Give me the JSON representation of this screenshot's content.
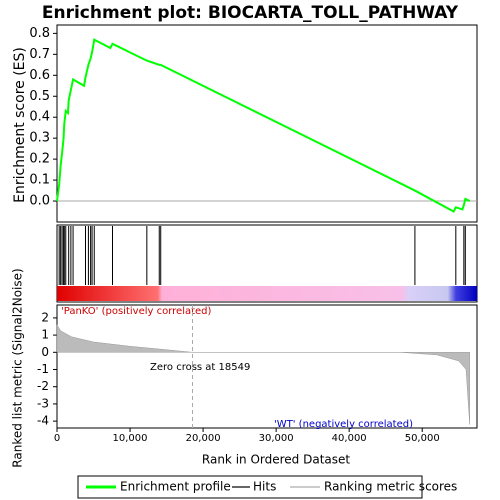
{
  "chart_data": {
    "type": "line",
    "title": "Enrichment plot: BIOCARTA_TOLL_PATHWAY",
    "ylabel": "Enrichment score (ES)",
    "xlabel": "Rank in Ordered Dataset",
    "xlim": [
      0,
      57500
    ],
    "xticks": [
      0,
      {
        "value": 10000,
        "label": "10,000"
      },
      {
        "value": 20000,
        "label": "20,000"
      },
      {
        "value": 30000,
        "label": "30,000"
      },
      {
        "value": 40000,
        "label": "40,000"
      },
      {
        "value": 50000,
        "label": "50,000"
      }
    ],
    "ylim": [
      -0.1,
      0.84
    ],
    "yticks": [
      {
        "value": 0,
        "label": "0.0"
      },
      0.1,
      0.2,
      0.3,
      0.4,
      0.5,
      0.6,
      0.7,
      0.8
    ],
    "series": [
      {
        "name": "Enrichment profile",
        "color": "#00ff00",
        "x": [
          0,
          300,
          500,
          700,
          900,
          1000,
          1200,
          1500,
          1600,
          1900,
          2200,
          3700,
          3900,
          4300,
          4600,
          4800,
          5100,
          7300,
          7600,
          12300,
          14000,
          14200,
          49000,
          54300,
          54600,
          55500,
          55700,
          55900,
          56500
        ],
        "values": [
          0.0,
          0.08,
          0.17,
          0.23,
          0.3,
          0.37,
          0.43,
          0.42,
          0.48,
          0.53,
          0.58,
          0.55,
          0.59,
          0.65,
          0.68,
          0.71,
          0.77,
          0.73,
          0.75,
          0.67,
          0.65,
          0.65,
          0.05,
          -0.05,
          -0.03,
          -0.04,
          -0.02,
          0.01,
          0.0
        ]
      }
    ],
    "hits": {
      "name": "Hits",
      "x": [
        300,
        500,
        700,
        900,
        1000,
        1200,
        1600,
        1900,
        2200,
        3900,
        4300,
        4600,
        4800,
        5100,
        7600,
        12300,
        14000,
        14200,
        49000,
        54600,
        55700,
        55900
      ]
    },
    "metric": {
      "name": "Ranking metric scores",
      "ylabel": "Ranked list metric (Signal2Noise)",
      "x": [
        0,
        500,
        2000,
        5000,
        10000,
        15000,
        18549,
        47000,
        52000,
        55000,
        56000,
        56500
      ],
      "values": [
        1.6,
        1.25,
        0.9,
        0.6,
        0.35,
        0.15,
        0,
        0,
        -0.15,
        -0.5,
        -1.0,
        -4.2
      ],
      "ylim": [
        -4.4,
        2.75
      ],
      "yticks": [
        2,
        1,
        0,
        -1,
        -2,
        -3,
        -4
      ]
    },
    "zero_cross": {
      "value": 18549,
      "label": "Zero cross at 18549"
    },
    "pos_label": "'PanKO' (positively correlated)",
    "neg_label": "'WT' (negatively correlated)"
  }
}
